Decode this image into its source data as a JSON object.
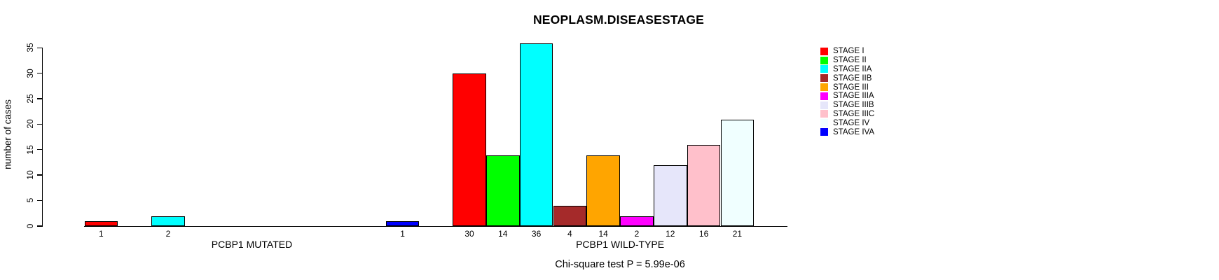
{
  "title": "NEOPLASM.DISEASESTAGE",
  "footnote": "Chi-square test P = 5.99e-06",
  "ylabel": "number of cases",
  "chart_data": {
    "type": "bar",
    "title": "NEOPLASM.DISEASESTAGE",
    "xlabel": "",
    "ylabel": "number of cases",
    "ylim": [
      0,
      35
    ],
    "y_ticks": [
      0,
      5,
      10,
      15,
      20,
      25,
      30,
      35
    ],
    "grid": false,
    "legend_position": "right",
    "groups": [
      "PCBP1 MUTATED",
      "PCBP1 WILD-TYPE"
    ],
    "series": [
      {
        "name": "STAGE I",
        "color": "#FF0000",
        "values": [
          1,
          30
        ]
      },
      {
        "name": "STAGE II",
        "color": "#00FF00",
        "values": [
          0,
          14
        ]
      },
      {
        "name": "STAGE IIA",
        "color": "#00FFFF",
        "values": [
          2,
          36
        ]
      },
      {
        "name": "STAGE IIB",
        "color": "#A52A2A",
        "values": [
          0,
          4
        ]
      },
      {
        "name": "STAGE III",
        "color": "#FFA500",
        "values": [
          0,
          14
        ]
      },
      {
        "name": "STAGE IIIA",
        "color": "#FF00FF",
        "values": [
          0,
          2
        ]
      },
      {
        "name": "STAGE IIIB",
        "color": "#E6E6FA",
        "values": [
          0,
          12
        ]
      },
      {
        "name": "STAGE IIIC",
        "color": "#FFC0CB",
        "values": [
          0,
          16
        ]
      },
      {
        "name": "STAGE IV",
        "color": "#F0FFFF",
        "values": [
          0,
          21
        ]
      },
      {
        "name": "STAGE IVA",
        "color": "#0000FF",
        "values": [
          1,
          0
        ]
      }
    ],
    "bar_value_labels": "shown below axis for non-zero bars",
    "annotation": "Chi-square test P = 5.99e-06"
  }
}
